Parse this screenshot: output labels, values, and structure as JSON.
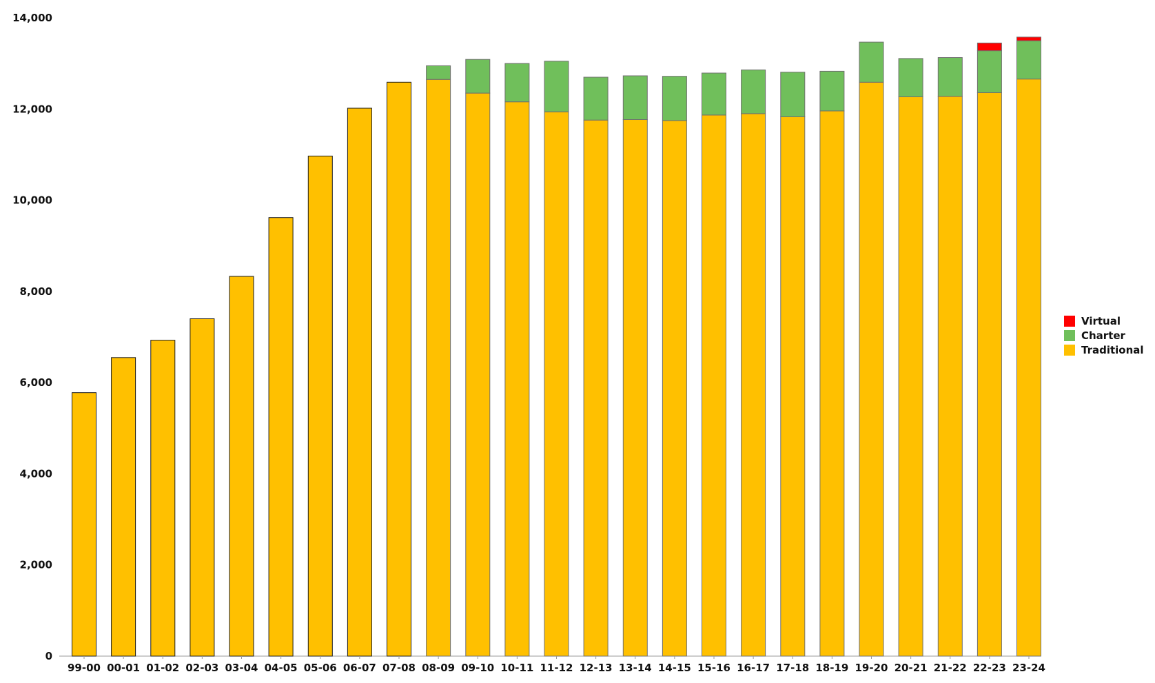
{
  "chart_data": {
    "type": "bar",
    "stacked": true,
    "title": "",
    "xlabel": "",
    "ylabel": "",
    "ylim": [
      0,
      14000
    ],
    "yticks": [
      0,
      2000,
      4000,
      6000,
      8000,
      10000,
      12000,
      14000
    ],
    "ytick_labels": [
      "0",
      "2,000",
      "4,000",
      "6,000",
      "8,000",
      "10,000",
      "12,000",
      "14,000"
    ],
    "grid": false,
    "legend_position": "right",
    "categories": [
      "99-00",
      "00-01",
      "01-02",
      "02-03",
      "03-04",
      "04-05",
      "05-06",
      "06-07",
      "07-08",
      "08-09",
      "09-10",
      "10-11",
      "11-12",
      "12-13",
      "13-14",
      "14-15",
      "15-16",
      "16-17",
      "17-18",
      "18-19",
      "19-20",
      "20-21",
      "21-22",
      "22-23",
      "23-24"
    ],
    "series": [
      {
        "name": "Traditional",
        "color": "#FFC000",
        "values": [
          5780,
          6550,
          6930,
          7400,
          8330,
          9620,
          10970,
          12020,
          12590,
          12650,
          12350,
          12160,
          11940,
          11760,
          11770,
          11750,
          11870,
          11900,
          11830,
          11960,
          12590,
          12270,
          12280,
          12360,
          12660
        ]
      },
      {
        "name": "Charter",
        "color": "#70BF5B",
        "values": [
          0,
          0,
          0,
          0,
          0,
          0,
          0,
          0,
          0,
          300,
          740,
          840,
          1110,
          940,
          960,
          970,
          920,
          960,
          980,
          870,
          880,
          840,
          850,
          920,
          840
        ]
      },
      {
        "name": "Virtual",
        "color": "#FF0000",
        "values": [
          0,
          0,
          0,
          0,
          0,
          0,
          0,
          0,
          0,
          0,
          0,
          0,
          0,
          0,
          0,
          0,
          0,
          0,
          0,
          0,
          0,
          0,
          0,
          170,
          80
        ]
      }
    ],
    "legend_order": [
      "Virtual",
      "Charter",
      "Traditional"
    ]
  }
}
